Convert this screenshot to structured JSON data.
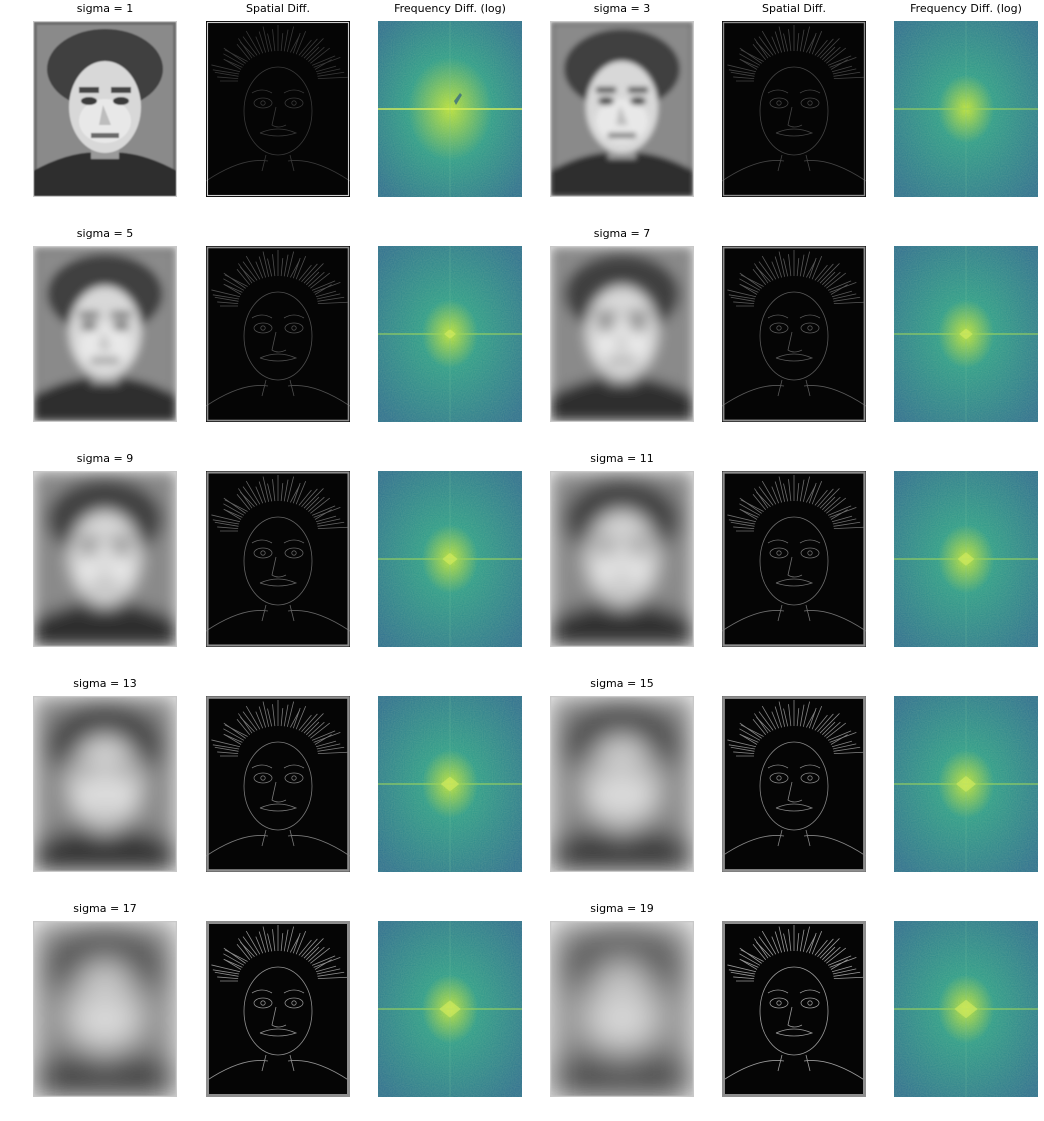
{
  "figure": {
    "rows": [
      {
        "panels": [
          {
            "title": "sigma = 1",
            "kind": "blurred",
            "sigma": 1
          },
          {
            "title": "Spatial Diff.",
            "kind": "spatial-diff",
            "sigma": 1
          },
          {
            "title": "Frequency Diff. (log)",
            "kind": "freq-diff",
            "sigma": 1
          },
          {
            "title": "sigma = 3",
            "kind": "blurred",
            "sigma": 3
          },
          {
            "title": "Spatial Diff.",
            "kind": "spatial-diff",
            "sigma": 3
          },
          {
            "title": "Frequency Diff. (log)",
            "kind": "freq-diff",
            "sigma": 3
          }
        ]
      },
      {
        "panels": [
          {
            "title": "sigma = 5",
            "kind": "blurred",
            "sigma": 5
          },
          {
            "title": "",
            "kind": "spatial-diff",
            "sigma": 5
          },
          {
            "title": "",
            "kind": "freq-diff",
            "sigma": 5
          },
          {
            "title": "sigma = 7",
            "kind": "blurred",
            "sigma": 7
          },
          {
            "title": "",
            "kind": "spatial-diff",
            "sigma": 7
          },
          {
            "title": "",
            "kind": "freq-diff",
            "sigma": 7
          }
        ]
      },
      {
        "panels": [
          {
            "title": "sigma = 9",
            "kind": "blurred",
            "sigma": 9
          },
          {
            "title": "",
            "kind": "spatial-diff",
            "sigma": 9
          },
          {
            "title": "",
            "kind": "freq-diff",
            "sigma": 9
          },
          {
            "title": "sigma = 11",
            "kind": "blurred",
            "sigma": 11
          },
          {
            "title": "",
            "kind": "spatial-diff",
            "sigma": 11
          },
          {
            "title": "",
            "kind": "freq-diff",
            "sigma": 11
          }
        ]
      },
      {
        "panels": [
          {
            "title": "sigma = 13",
            "kind": "blurred",
            "sigma": 13
          },
          {
            "title": "",
            "kind": "spatial-diff",
            "sigma": 13
          },
          {
            "title": "",
            "kind": "freq-diff",
            "sigma": 13
          },
          {
            "title": "sigma = 15",
            "kind": "blurred",
            "sigma": 15
          },
          {
            "title": "",
            "kind": "spatial-diff",
            "sigma": 15
          },
          {
            "title": "",
            "kind": "freq-diff",
            "sigma": 15
          }
        ]
      },
      {
        "panels": [
          {
            "title": "sigma = 17",
            "kind": "blurred",
            "sigma": 17
          },
          {
            "title": "",
            "kind": "spatial-diff",
            "sigma": 17
          },
          {
            "title": "",
            "kind": "freq-diff",
            "sigma": 17
          },
          {
            "title": "sigma = 19",
            "kind": "blurred",
            "sigma": 19
          },
          {
            "title": "",
            "kind": "spatial-diff",
            "sigma": 19
          },
          {
            "title": "",
            "kind": "freq-diff",
            "sigma": 19
          }
        ]
      }
    ]
  },
  "colors": {
    "background": "#ffffff",
    "title_text": "#000000",
    "spatial_bg": "#050505",
    "freq_dark": "#2c6f8f",
    "freq_mid": "#2c9a89",
    "freq_bright": "#b7de3a"
  }
}
